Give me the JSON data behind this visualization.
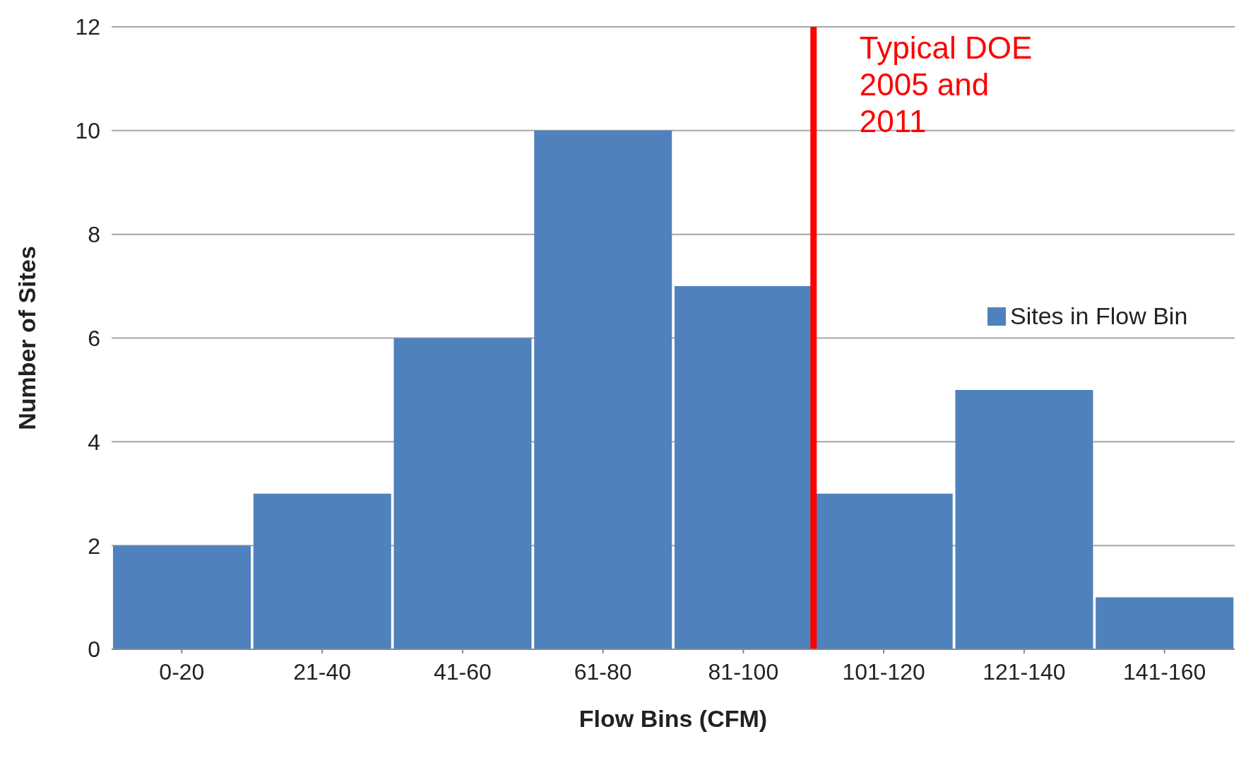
{
  "chart_data": {
    "type": "bar",
    "xlabel": "Flow Bins (CFM)",
    "ylabel": "Number of Sites",
    "categories": [
      "0-20",
      "21-40",
      "41-60",
      "61-80",
      "81-100",
      "101-120",
      "121-140",
      "141-160"
    ],
    "series": [
      {
        "name": "Sites in Flow Bin",
        "color": "#4f81bd",
        "values": [
          2,
          3,
          6,
          10,
          7,
          3,
          5,
          1
        ]
      }
    ],
    "ylim": [
      0,
      12
    ],
    "yticks": [
      0,
      2,
      4,
      6,
      8,
      10,
      12
    ],
    "grid": "y",
    "legend": "right",
    "ref_lines": [
      {
        "axis": "x",
        "value": "81-100",
        "label": "Typical DOE 2005 and 2011",
        "color": "#ff0000"
      }
    ]
  }
}
